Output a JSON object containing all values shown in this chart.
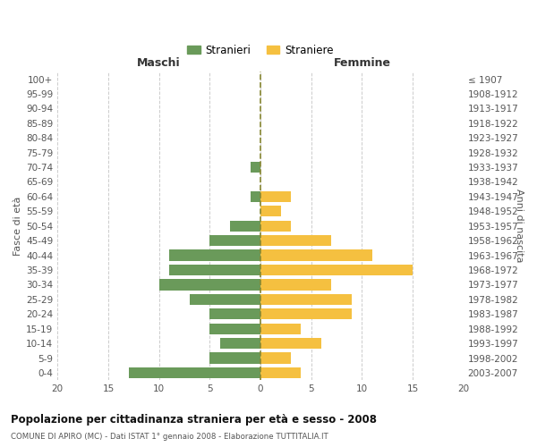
{
  "age_groups": [
    "0-4",
    "5-9",
    "10-14",
    "15-19",
    "20-24",
    "25-29",
    "30-34",
    "35-39",
    "40-44",
    "45-49",
    "50-54",
    "55-59",
    "60-64",
    "65-69",
    "70-74",
    "75-79",
    "80-84",
    "85-89",
    "90-94",
    "95-99",
    "100+"
  ],
  "birth_years": [
    "2003-2007",
    "1998-2002",
    "1993-1997",
    "1988-1992",
    "1983-1987",
    "1978-1982",
    "1973-1977",
    "1968-1972",
    "1963-1967",
    "1958-1962",
    "1953-1957",
    "1948-1952",
    "1943-1947",
    "1938-1942",
    "1933-1937",
    "1928-1932",
    "1923-1927",
    "1918-1922",
    "1913-1917",
    "1908-1912",
    "≤ 1907"
  ],
  "males": [
    13,
    5,
    4,
    5,
    5,
    7,
    10,
    9,
    9,
    5,
    3,
    0,
    1,
    0,
    1,
    0,
    0,
    0,
    0,
    0,
    0
  ],
  "females": [
    4,
    3,
    6,
    4,
    9,
    9,
    7,
    15,
    11,
    7,
    3,
    2,
    3,
    0,
    0,
    0,
    0,
    0,
    0,
    0,
    0
  ],
  "male_color": "#6a9a5a",
  "female_color": "#f5c040",
  "title_main": "Popolazione per cittadinanza straniera per età e sesso - 2008",
  "title_sub": "COMUNE DI APIRO (MC) - Dati ISTAT 1° gennaio 2008 - Elaborazione TUTTITALIA.IT",
  "xlabel_left": "Maschi",
  "xlabel_right": "Femmine",
  "ylabel_left": "Fasce di età",
  "ylabel_right": "Anni di nascita",
  "legend_male": "Stranieri",
  "legend_female": "Straniere",
  "xlim": 20,
  "bg_color": "#ffffff",
  "grid_color": "#cccccc",
  "bar_height": 0.75
}
